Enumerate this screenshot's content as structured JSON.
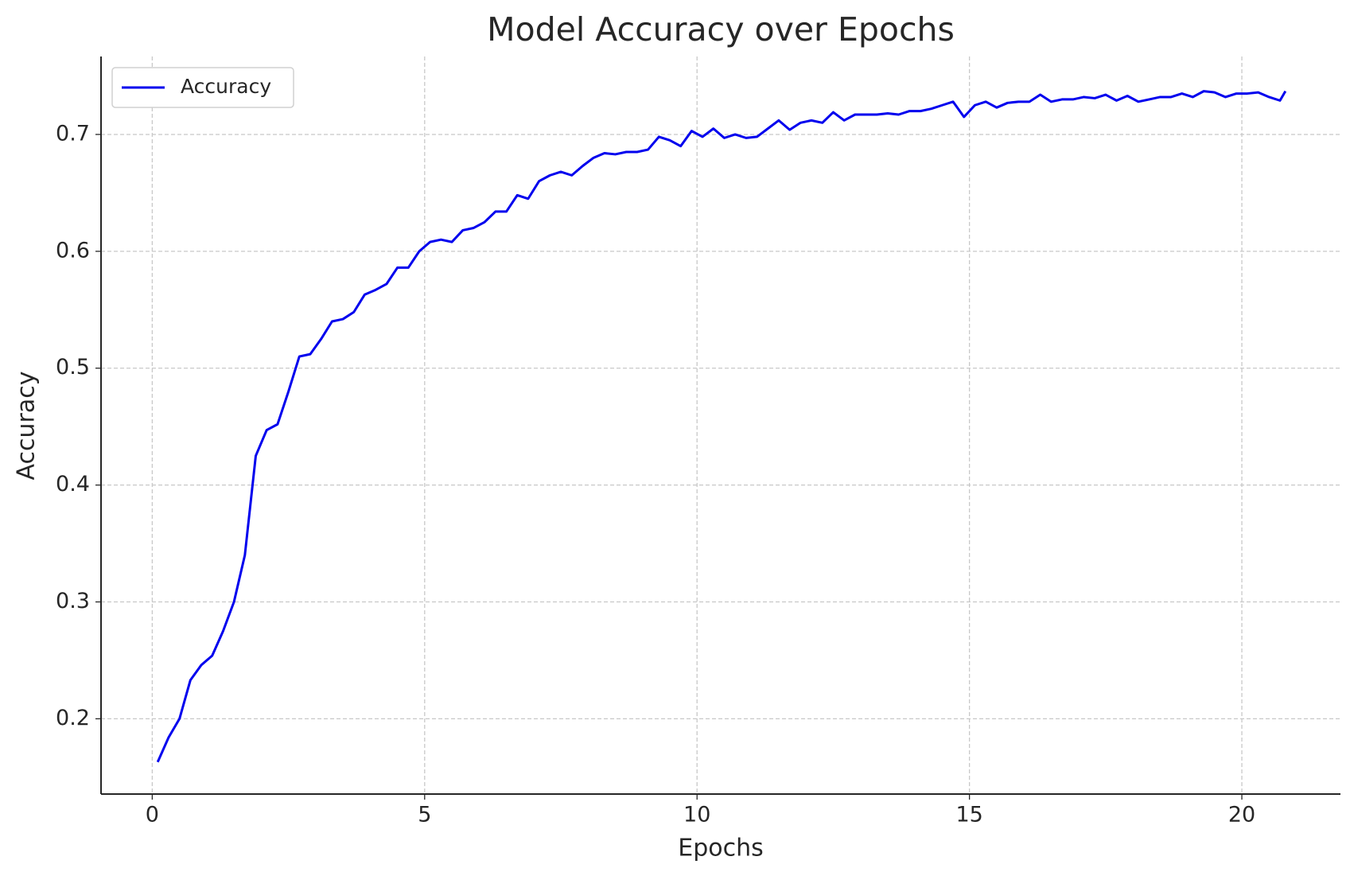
{
  "chart_data": {
    "type": "line",
    "title": "Model Accuracy over Epochs",
    "xlabel": "Epochs",
    "ylabel": "Accuracy",
    "x": [
      0.1,
      0.3,
      0.5,
      0.7,
      0.9,
      1.1,
      1.3,
      1.5,
      1.7,
      1.9,
      2.1,
      2.3,
      2.5,
      2.7,
      2.9,
      3.1,
      3.3,
      3.5,
      3.7,
      3.9,
      4.1,
      4.3,
      4.5,
      4.7,
      4.9,
      5.1,
      5.3,
      5.5,
      5.7,
      5.9,
      6.1,
      6.3,
      6.5,
      6.7,
      6.9,
      7.1,
      7.3,
      7.5,
      7.7,
      7.9,
      8.1,
      8.3,
      8.5,
      8.7,
      8.9,
      9.1,
      9.3,
      9.5,
      9.7,
      9.9,
      10.1,
      10.3,
      10.5,
      10.7,
      10.9,
      11.1,
      11.3,
      11.5,
      11.7,
      11.9,
      12.1,
      12.3,
      12.5,
      12.7,
      12.9,
      13.1,
      13.3,
      13.5,
      13.7,
      13.9,
      14.1,
      14.3,
      14.5,
      14.7,
      14.9,
      15.1,
      15.3,
      15.5,
      15.7,
      15.9,
      16.1,
      16.3,
      16.5,
      16.7,
      16.9,
      17.1,
      17.3,
      17.5,
      17.7,
      17.9,
      18.1,
      18.3,
      18.5,
      18.7,
      18.9,
      19.1,
      19.3,
      19.5,
      19.7,
      19.9,
      20.1,
      20.3,
      20.5,
      20.7,
      20.8
    ],
    "series": [
      {
        "name": "Accuracy",
        "color": "#0000ee",
        "values": [
          0.163,
          0.184,
          0.2,
          0.233,
          0.246,
          0.254,
          0.275,
          0.3,
          0.34,
          0.425,
          0.447,
          0.452,
          0.48,
          0.51,
          0.512,
          0.525,
          0.54,
          0.542,
          0.548,
          0.563,
          0.567,
          0.572,
          0.586,
          0.586,
          0.6,
          0.608,
          0.61,
          0.608,
          0.618,
          0.62,
          0.625,
          0.634,
          0.634,
          0.648,
          0.645,
          0.66,
          0.665,
          0.668,
          0.665,
          0.673,
          0.68,
          0.684,
          0.683,
          0.685,
          0.685,
          0.687,
          0.698,
          0.695,
          0.69,
          0.703,
          0.698,
          0.705,
          0.697,
          0.7,
          0.697,
          0.698,
          0.705,
          0.712,
          0.704,
          0.71,
          0.712,
          0.71,
          0.719,
          0.712,
          0.717,
          0.717,
          0.717,
          0.718,
          0.717,
          0.72,
          0.72,
          0.722,
          0.725,
          0.728,
          0.715,
          0.725,
          0.728,
          0.723,
          0.727,
          0.728,
          0.728,
          0.734,
          0.728,
          0.73,
          0.73,
          0.732,
          0.731,
          0.734,
          0.729,
          0.733,
          0.728,
          0.73,
          0.732,
          0.732,
          0.735,
          0.732,
          0.737,
          0.736,
          0.732,
          0.735,
          0.735,
          0.736,
          0.732,
          0.729,
          0.737
        ]
      }
    ],
    "xlim": [
      -0.94,
      21.81
    ],
    "ylim": [
      0.1356,
      0.7667
    ],
    "xticks": [
      0,
      5,
      10,
      15,
      20
    ],
    "yticks": [
      0.2,
      0.3,
      0.4,
      0.5,
      0.6,
      0.7
    ],
    "grid": true,
    "legend": "upper left"
  }
}
